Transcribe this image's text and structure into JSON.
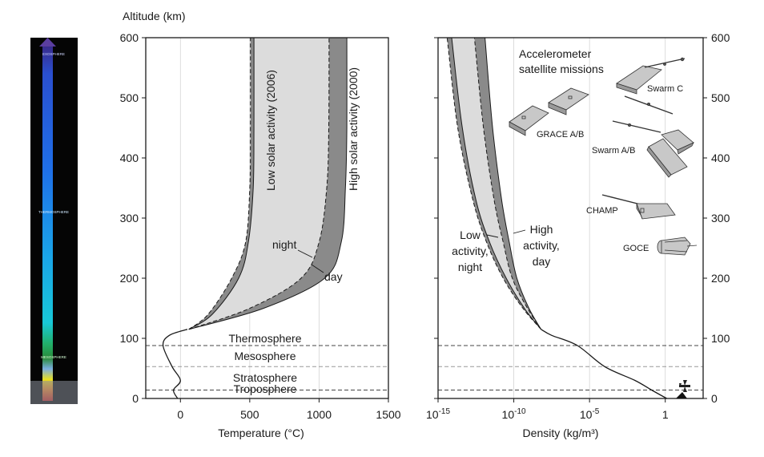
{
  "figure": {
    "altitude_label": "Altitude (km)",
    "altitude_ticks": [
      "0",
      "100",
      "200",
      "300",
      "400",
      "500",
      "600"
    ],
    "column_labels": [
      "EXOSPHERE",
      "THERMOSPHERE",
      "MESOSPHERE"
    ],
    "left_axis_label": "Temperature (°C)",
    "right_axis_label": "Density (kg/m³)"
  },
  "chart_data": [
    {
      "type": "line",
      "xlabel": "Temperature (°C)",
      "ylabel": "Altitude (km)",
      "xlim": [
        -250,
        1500
      ],
      "ylim": [
        0,
        600
      ],
      "xticks": [
        "0",
        "500",
        "1000",
        "1500"
      ],
      "x_tick_values": [
        0,
        500,
        1000,
        1500
      ],
      "yticks": [
        0,
        100,
        200,
        300,
        400,
        500,
        600
      ],
      "layers": [
        {
          "name": "Thermosphere",
          "boundary_km": 88
        },
        {
          "name": "Mesosphere",
          "boundary_km": 53
        },
        {
          "name": "Stratosphere",
          "boundary_km": 14
        },
        {
          "name": "Troposphere"
        }
      ],
      "lower_profile": {
        "x": [
          -20,
          -50,
          0,
          -60,
          -125,
          -80,
          50
        ],
        "y": [
          0,
          14,
          30,
          53,
          88,
          105,
          115
        ]
      },
      "series": [
        {
          "name": "Low solar activity (2006) night",
          "style": "dashed",
          "x": [
            60,
            200,
            370,
            470,
            500,
            505,
            505
          ],
          "y": [
            115,
            140,
            200,
            260,
            350,
            450,
            600
          ]
        },
        {
          "name": "Low solar activity (2006) day",
          "style": "solid",
          "x": [
            60,
            230,
            420,
            490,
            525,
            530,
            530
          ],
          "y": [
            115,
            140,
            200,
            260,
            350,
            450,
            600
          ]
        },
        {
          "name": "High solar activity (2000) night",
          "style": "dashed",
          "x": [
            60,
            500,
            870,
            1000,
            1055,
            1070,
            1072
          ],
          "y": [
            115,
            150,
            200,
            260,
            350,
            450,
            600
          ]
        },
        {
          "name": "High solar activity (2000) day",
          "style": "solid",
          "x": [
            60,
            600,
            1040,
            1160,
            1190,
            1200,
            1200
          ],
          "y": [
            115,
            150,
            200,
            260,
            350,
            450,
            600
          ]
        }
      ],
      "annotations": [
        "Low solar activity (2006)",
        "High solar activity (2000)",
        "night",
        "day"
      ]
    },
    {
      "type": "line",
      "xlabel": "Density (kg/m³)",
      "ylabel": "Altitude (km)",
      "x_scale": "log",
      "xlim": [
        -15,
        2.5
      ],
      "ylim": [
        0,
        600
      ],
      "x_tick_exponents": [
        -15,
        -10,
        -5,
        0
      ],
      "xticks": [
        "10-15",
        "10-10",
        "10-5",
        "1"
      ],
      "yticks": [
        0,
        100,
        200,
        300,
        400,
        500,
        600
      ],
      "lower_profile": {
        "log10_x": [
          0.1,
          -0.9,
          -2,
          -4,
          -5.8,
          -7.5,
          -8.2
        ],
        "y": [
          0,
          14,
          30,
          53,
          88,
          105,
          115
        ]
      },
      "series": [
        {
          "name": "Low activity, night",
          "style": "dashed",
          "log10_x": [
            -8.2,
            -9.4,
            -10.7,
            -11.8,
            -12.7,
            -13.7,
            -14.4
          ],
          "y": [
            115,
            150,
            200,
            260,
            330,
            450,
            600
          ]
        },
        {
          "name": "Low activity, day",
          "style": "solid",
          "log10_x": [
            -8.2,
            -9.3,
            -10.5,
            -11.6,
            -12.5,
            -13.4,
            -14.1
          ],
          "y": [
            115,
            150,
            200,
            260,
            330,
            450,
            600
          ]
        },
        {
          "name": "High activity, night",
          "style": "dashed",
          "log10_x": [
            -8.2,
            -9.1,
            -10.1,
            -10.7,
            -11.3,
            -12.0,
            -12.6
          ],
          "y": [
            115,
            150,
            200,
            260,
            330,
            450,
            600
          ]
        },
        {
          "name": "High activity, day",
          "style": "solid",
          "log10_x": [
            -8.2,
            -9.0,
            -9.8,
            -10.3,
            -10.8,
            -11.4,
            -11.9
          ],
          "y": [
            115,
            150,
            200,
            260,
            330,
            450,
            600
          ]
        }
      ],
      "satellite_missions": {
        "title_lines": [
          "Accelerometer",
          "satellite missions"
        ],
        "names": [
          "Swarm C",
          "GRACE A/B",
          "Swarm A/B",
          "CHAMP",
          "GOCE"
        ]
      },
      "labels": {
        "low": [
          "Low",
          "activity,",
          "night"
        ],
        "high": [
          "High",
          "activity,",
          "day"
        ]
      }
    }
  ]
}
